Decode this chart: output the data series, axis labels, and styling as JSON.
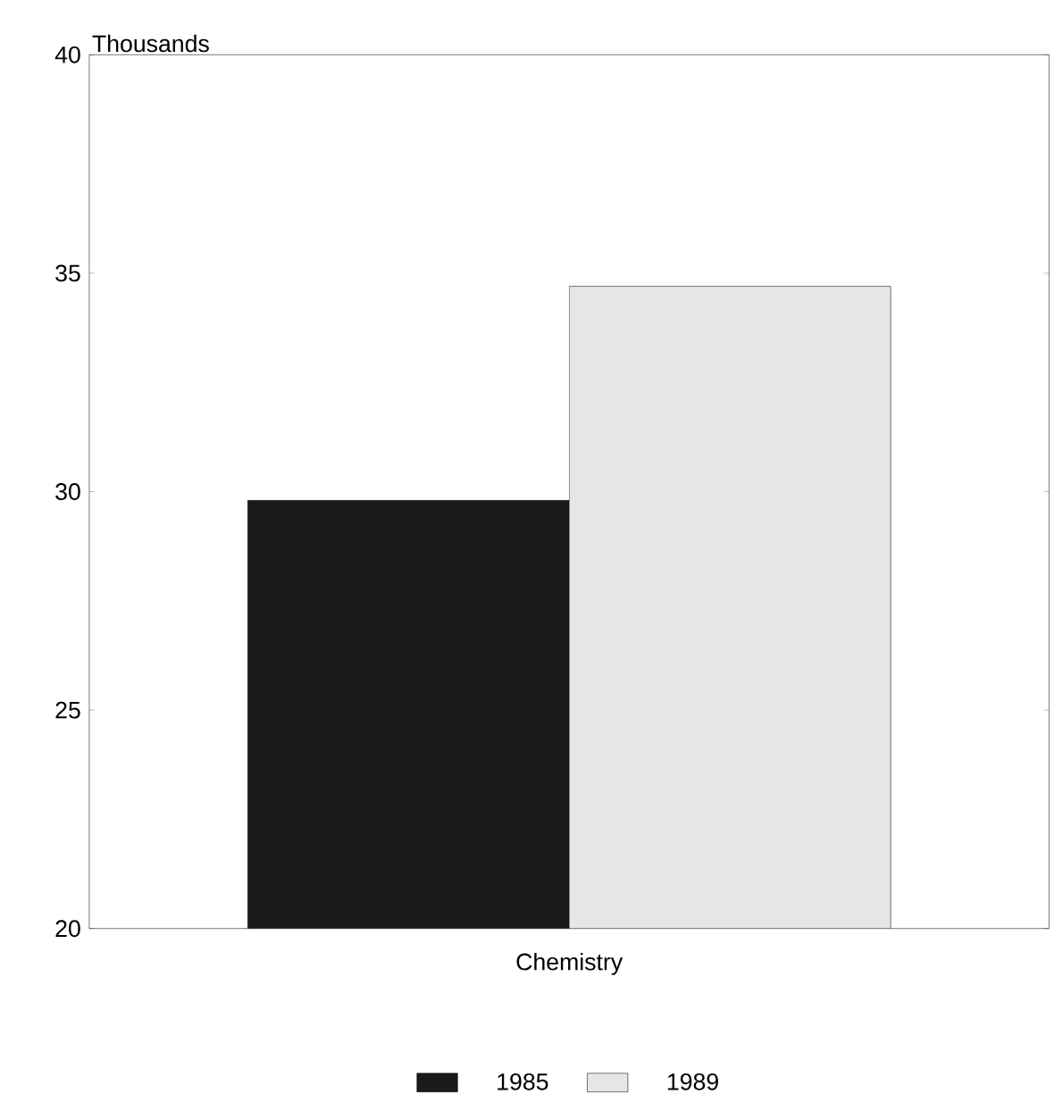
{
  "chart_data": {
    "type": "bar",
    "xlabel": "Chemistry",
    "ylabel": "Thousands",
    "categories": [
      null
    ],
    "series": [
      {
        "name": "1985",
        "color": "#1a1a1a",
        "values": [
          29.8
        ]
      },
      {
        "name": "1989",
        "color": "#e6e6e6",
        "values": [
          34.7
        ]
      }
    ],
    "ylim": [
      20,
      40
    ],
    "yticks": [
      20,
      25,
      30,
      35,
      40
    ],
    "legend": "bottom",
    "grid": false
  }
}
